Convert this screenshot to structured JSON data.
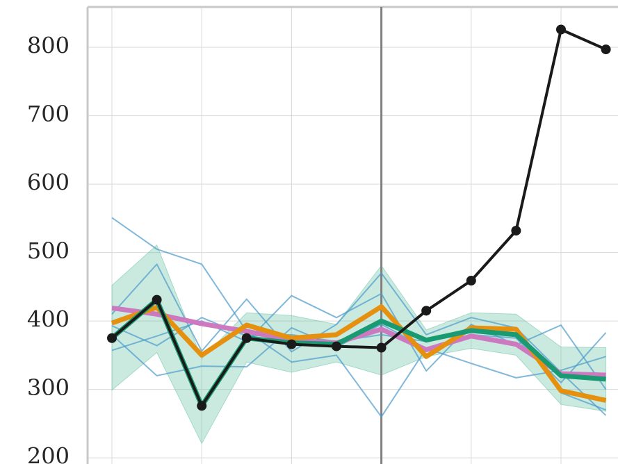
{
  "chart_data": {
    "type": "line",
    "categories": [
      null,
      null,
      null,
      null,
      null,
      null,
      null,
      null,
      null,
      null,
      null,
      null
    ],
    "ylim": [
      191,
      859
    ],
    "yticks": [
      200,
      300,
      400,
      500,
      600,
      700,
      800
    ],
    "grid": true,
    "vline_index": 6,
    "band": {
      "color": "#66c2a5",
      "upper": [
        452,
        511,
        345,
        412,
        408,
        395,
        481,
        387,
        412,
        410,
        362,
        361
      ],
      "lower": [
        299,
        354,
        221,
        340,
        325,
        340,
        321,
        348,
        360,
        350,
        278,
        268
      ]
    },
    "series": [
      {
        "color": "#4c9acb",
        "values": [
          551,
          505,
          483,
          385,
          340,
          350,
          260,
          360,
          338,
          317,
          328,
          348
        ]
      },
      {
        "color": "#4c9acb",
        "values": [
          410,
          483,
          356,
          432,
          355,
          395,
          470,
          380,
          405,
          390,
          325,
          262
        ]
      },
      {
        "color": "#4c9acb",
        "values": [
          357,
          378,
          400,
          370,
          437,
          405,
          440,
          327,
          395,
          365,
          394,
          300
        ]
      },
      {
        "color": "#4c9acb",
        "values": [
          380,
          320,
          334,
          333,
          390,
          362,
          395,
          360,
          380,
          375,
          310,
          383
        ]
      },
      {
        "color": "#4c9acb",
        "values": [
          393,
          364,
          405,
          378,
          380,
          370,
          380,
          370,
          390,
          390,
          295,
          270
        ]
      },
      {
        "color": "#cc79c0",
        "values": [
          419,
          410,
          396,
          385,
          372,
          368,
          388,
          358,
          378,
          366,
          323,
          321
        ]
      },
      {
        "color": "#e69010",
        "values": [
          397,
          420,
          350,
          394,
          375,
          380,
          421,
          348,
          390,
          388,
          298,
          284
        ]
      },
      {
        "color": "#1a9a72",
        "values": [
          375,
          431,
          276,
          375,
          368,
          366,
          400,
          372,
          386,
          380,
          320,
          315
        ]
      },
      {
        "color": "#1a1a1a",
        "markers": true,
        "values": [
          375,
          431,
          276,
          375,
          366,
          363,
          361,
          415,
          459,
          532,
          826,
          797
        ]
      }
    ]
  }
}
